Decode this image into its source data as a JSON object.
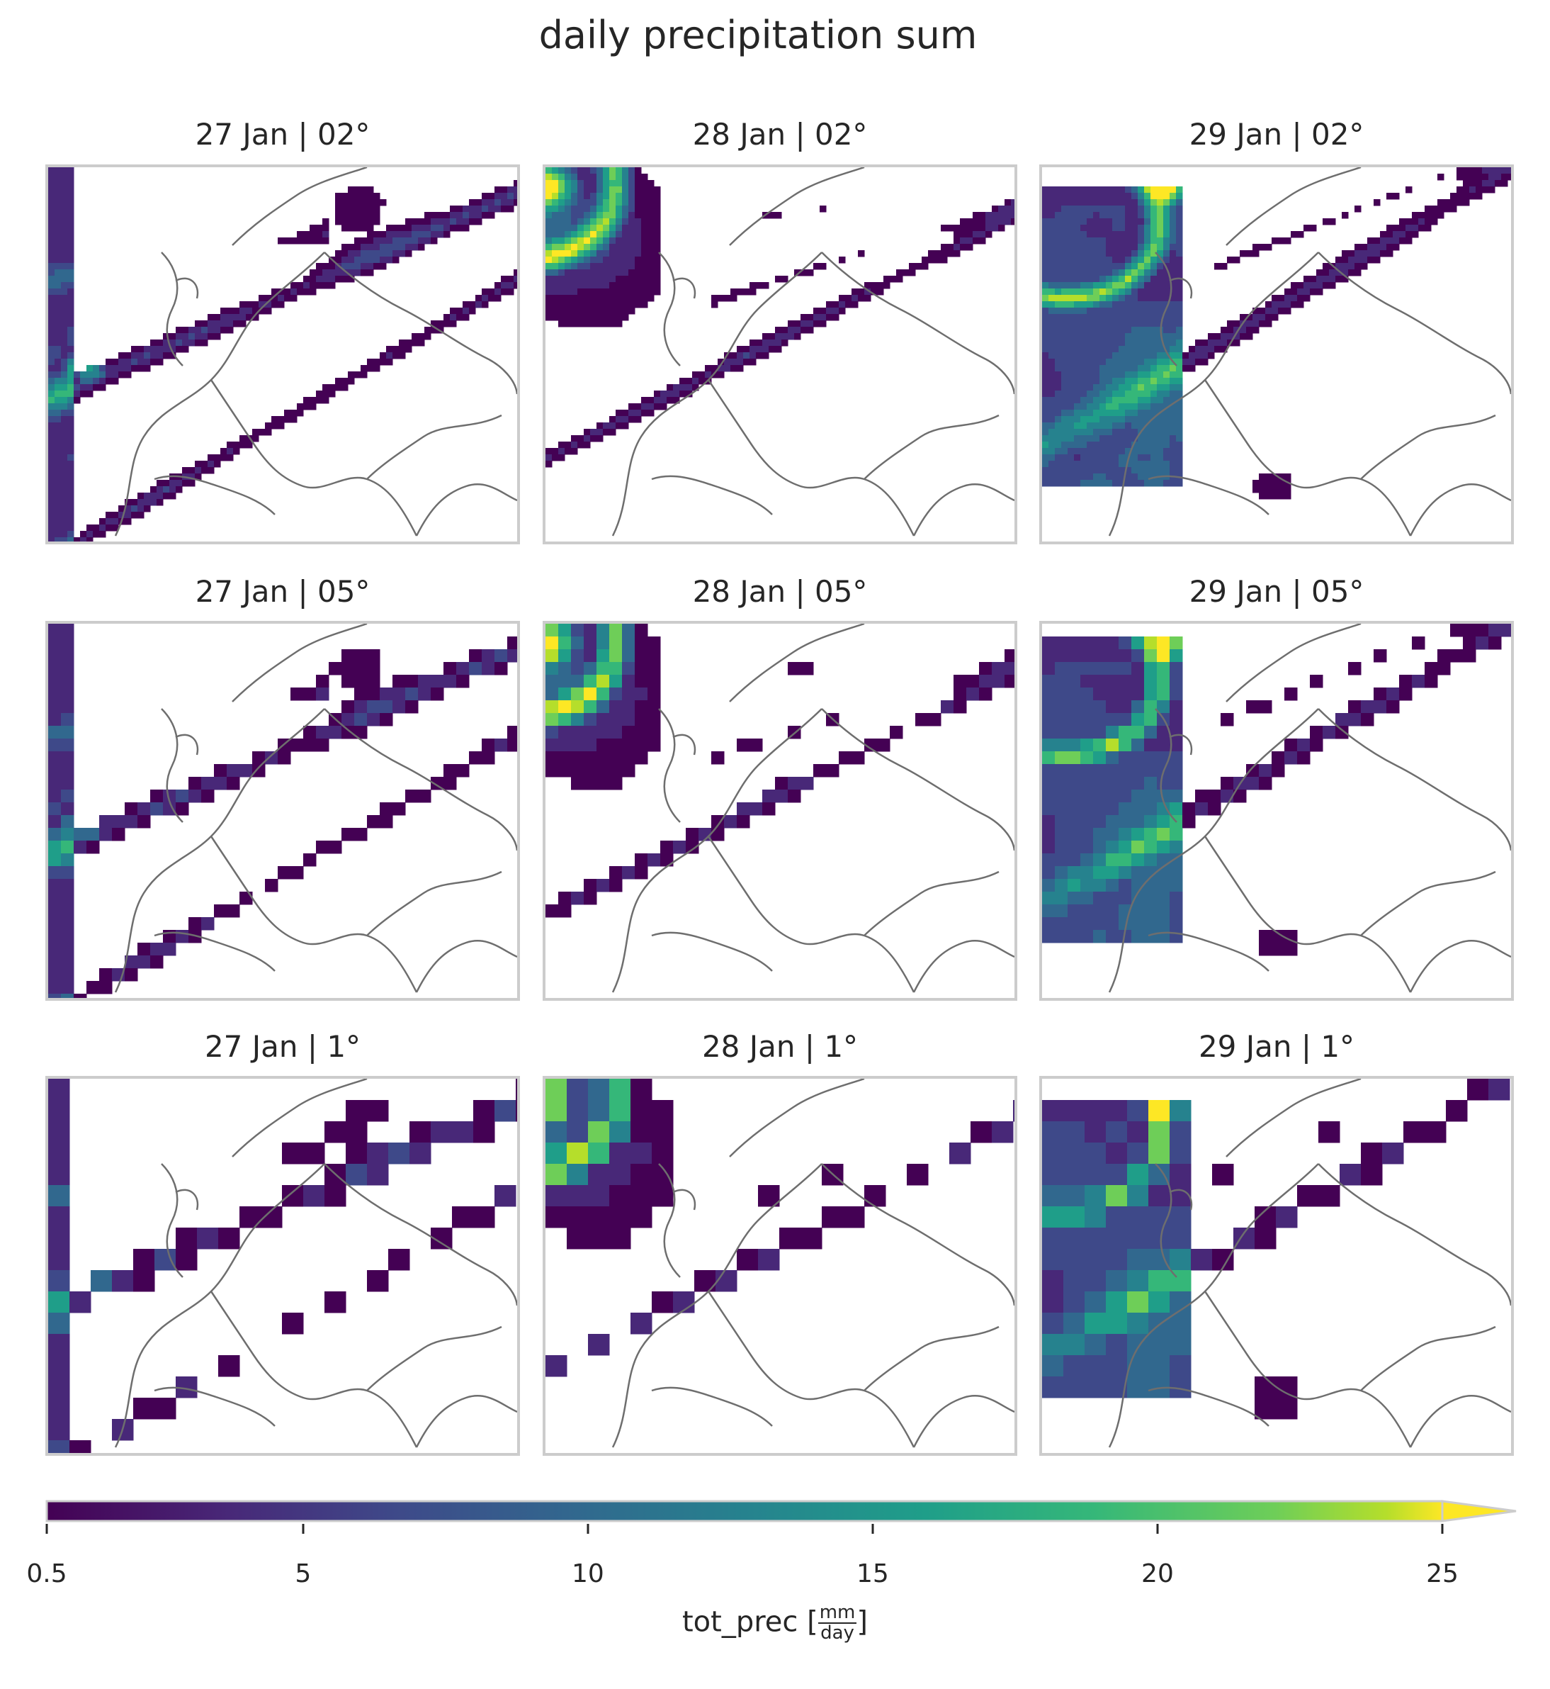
{
  "chart_data": {
    "type": "heatmap",
    "title": "daily precipitation sum",
    "colormap": "viridis",
    "colorbar": {
      "vmin": 0.5,
      "vmax": 25,
      "extend": "max",
      "ticks": [
        "0.5",
        "5",
        "10",
        "15",
        "20",
        "25"
      ],
      "tick_values": [
        0.5,
        5,
        10,
        15,
        20,
        25
      ],
      "label_prefix": "tot_prec [",
      "label_num": "mm",
      "label_den": "day",
      "label_suffix": "]"
    },
    "panels": [
      {
        "title": "27 Jan | 02°",
        "date": "27 Jan",
        "resolution": "02°"
      },
      {
        "title": "28 Jan | 02°",
        "date": "28 Jan",
        "resolution": "02°"
      },
      {
        "title": "29 Jan | 02°",
        "date": "29 Jan",
        "resolution": "02°"
      },
      {
        "title": "27 Jan | 05°",
        "date": "27 Jan",
        "resolution": "05°"
      },
      {
        "title": "28 Jan | 05°",
        "date": "28 Jan",
        "resolution": "05°"
      },
      {
        "title": "29 Jan | 05°",
        "date": "29 Jan",
        "resolution": "05°"
      },
      {
        "title": "27 Jan | 1°",
        "date": "27 Jan",
        "resolution": "1°"
      },
      {
        "title": "28 Jan | 1°",
        "date": "28 Jan",
        "resolution": "1°"
      },
      {
        "title": "29 Jan | 1°",
        "date": "29 Jan",
        "resolution": "1°"
      }
    ]
  }
}
